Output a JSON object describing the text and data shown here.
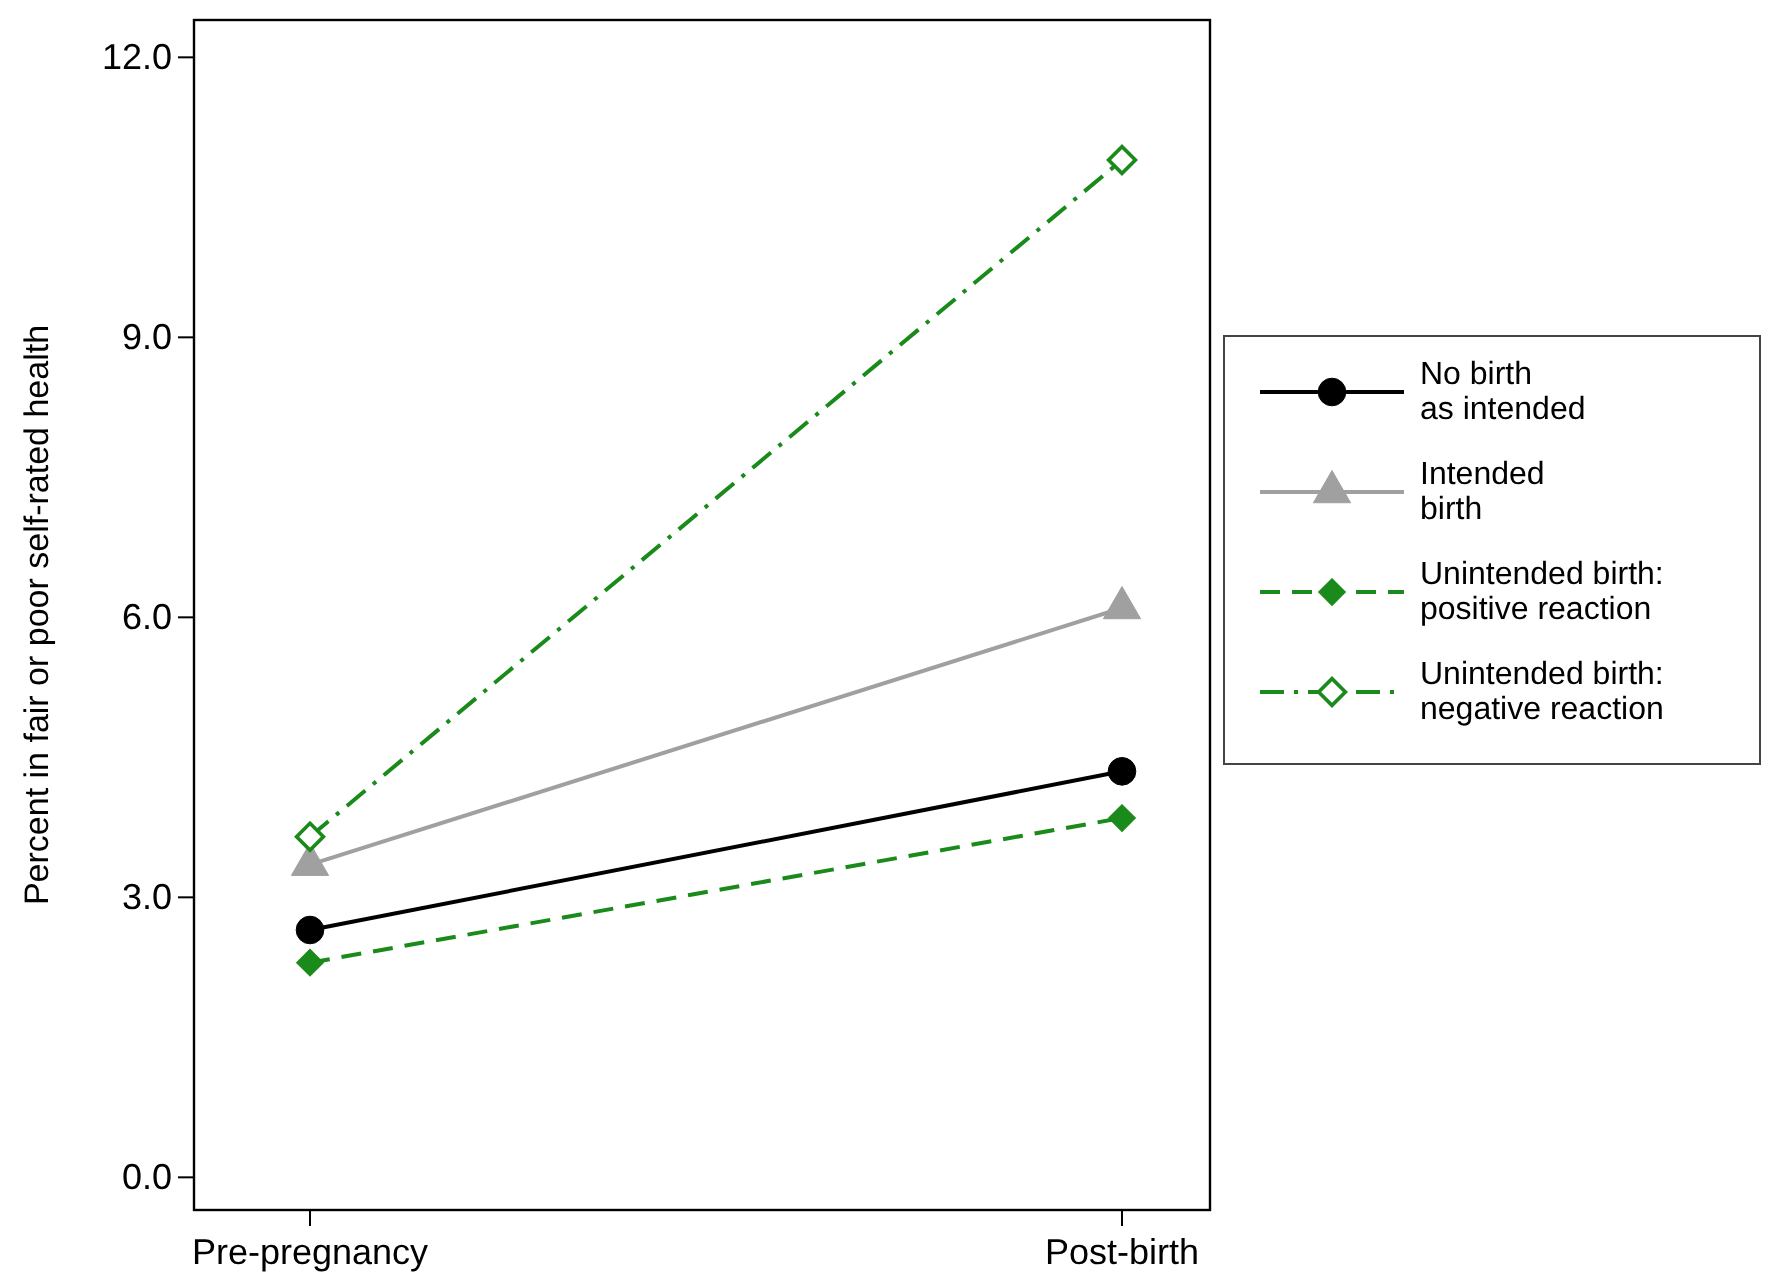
{
  "chart_data": {
    "type": "line",
    "ylabel": "Percent in fair or poor self-rated health",
    "categories": [
      "Pre-pregnancy",
      "Post-birth"
    ],
    "ylim": [
      -0.35,
      12.4
    ],
    "yticks": [
      {
        "value": 0,
        "label": "0.0"
      },
      {
        "value": 3,
        "label": "3.0"
      },
      {
        "value": 6,
        "label": "6.0"
      },
      {
        "value": 9,
        "label": "9.0"
      },
      {
        "value": 12,
        "label": "12.0"
      }
    ],
    "grid": false,
    "legend": "right",
    "series": [
      {
        "name": "No birth\nas intended",
        "color": "#000000",
        "values": [
          2.65,
          4.35
        ],
        "marker": "circle",
        "line_style": "solid"
      },
      {
        "name": "Intended\nbirth",
        "color": "#a0a0a0",
        "values": [
          3.35,
          6.1
        ],
        "marker": "triangle",
        "line_style": "solid"
      },
      {
        "name": "Unintended birth:\npositive reaction",
        "color": "#1a8a1a",
        "values": [
          2.3,
          3.85
        ],
        "marker": "diamond",
        "line_style": "dashed"
      },
      {
        "name": "Unintended birth:\nnegative reaction",
        "color": "#1a8a1a",
        "values": [
          3.65,
          10.9
        ],
        "marker": "diamond-open",
        "line_style": "dashdot"
      }
    ]
  }
}
